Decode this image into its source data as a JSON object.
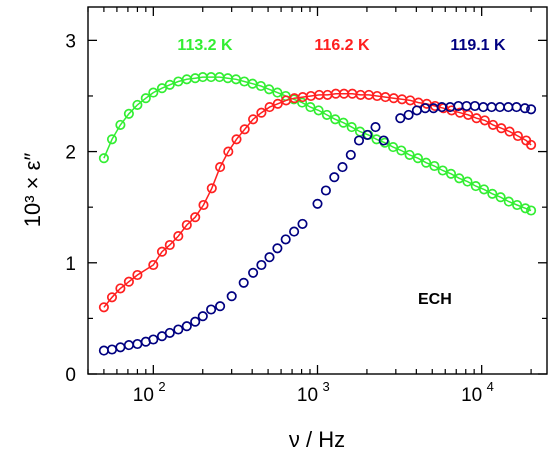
{
  "chart_data": {
    "type": "scatter",
    "xscale": "log",
    "xlim": [
      40,
      25000
    ],
    "ylim": [
      0,
      3.3
    ],
    "xlabel": "ν / Hz",
    "ylabel": "10³ × ε″",
    "x_ticks": [
      {
        "value": 100,
        "mantissa": "10",
        "exp": "2"
      },
      {
        "value": 1000,
        "mantissa": "10",
        "exp": "3"
      },
      {
        "value": 10000,
        "mantissa": "10",
        "exp": "4"
      }
    ],
    "y_ticks": [
      {
        "value": 0,
        "label": "0"
      },
      {
        "value": 1,
        "label": "1"
      },
      {
        "value": 2,
        "label": "2"
      },
      {
        "value": 3,
        "label": "3"
      }
    ],
    "annotation": "ECH",
    "grid": false,
    "series": [
      {
        "name": "113.2 K",
        "color": "#33ee33",
        "fit_line": true,
        "x": [
          50,
          56,
          63,
          71,
          80,
          90,
          100,
          113,
          126,
          142,
          160,
          180,
          200,
          225,
          253,
          284,
          319,
          358,
          402,
          452,
          507,
          570,
          640,
          718,
          806,
          905,
          1016,
          1141,
          1281,
          1439,
          1616,
          1815,
          2038,
          2289,
          2570,
          2886,
          3241,
          3640,
          4087,
          4590,
          5154,
          5788,
          6500,
          7299,
          8197,
          9205,
          10337,
          11608,
          13035,
          14638,
          16438,
          18460,
          20000
        ],
        "y": [
          1.94,
          2.11,
          2.24,
          2.34,
          2.42,
          2.48,
          2.53,
          2.57,
          2.6,
          2.63,
          2.65,
          2.66,
          2.67,
          2.67,
          2.67,
          2.66,
          2.65,
          2.63,
          2.61,
          2.59,
          2.56,
          2.53,
          2.5,
          2.47,
          2.44,
          2.4,
          2.37,
          2.33,
          2.29,
          2.26,
          2.22,
          2.18,
          2.15,
          2.11,
          2.08,
          2.04,
          2.01,
          1.97,
          1.94,
          1.9,
          1.87,
          1.83,
          1.8,
          1.76,
          1.73,
          1.69,
          1.66,
          1.62,
          1.59,
          1.55,
          1.52,
          1.49,
          1.47
        ]
      },
      {
        "name": "116.2 K",
        "color": "#ff2020",
        "fit_line": true,
        "x": [
          50,
          56,
          63,
          71,
          80,
          100,
          113,
          126,
          142,
          160,
          180,
          202,
          227,
          255,
          286,
          321,
          360,
          405,
          455,
          511,
          573,
          644,
          723,
          812,
          912,
          1024,
          1150,
          1292,
          1451,
          1629,
          1830,
          2055,
          2308,
          2592,
          2911,
          3270,
          3672,
          4124,
          4632,
          5202,
          5843,
          6562,
          7370,
          8278,
          9297,
          10442,
          11728,
          13172,
          14794,
          16616,
          18662,
          20000
        ],
        "y": [
          0.6,
          0.69,
          0.77,
          0.83,
          0.89,
          0.98,
          1.1,
          1.16,
          1.24,
          1.34,
          1.41,
          1.52,
          1.67,
          1.86,
          2.0,
          2.11,
          2.2,
          2.29,
          2.35,
          2.4,
          2.43,
          2.46,
          2.48,
          2.49,
          2.5,
          2.51,
          2.51,
          2.52,
          2.52,
          2.52,
          2.51,
          2.51,
          2.5,
          2.49,
          2.48,
          2.47,
          2.46,
          2.44,
          2.43,
          2.41,
          2.39,
          2.37,
          2.35,
          2.33,
          2.3,
          2.28,
          2.24,
          2.21,
          2.18,
          2.14,
          2.1,
          2.06
        ]
      },
      {
        "name": "119.1 K",
        "color": "#000080",
        "fit_line": false,
        "x": [
          50,
          56,
          63,
          71,
          80,
          90,
          100,
          113,
          126,
          142,
          160,
          180,
          200,
          225,
          255,
          300,
          355,
          405,
          455,
          510,
          570,
          640,
          720,
          810,
          1000,
          1125,
          1265,
          1420,
          1595,
          1790,
          2010,
          2255,
          2530,
          3195,
          3590,
          4030,
          4530,
          5090,
          5720,
          6425,
          7220,
          8100,
          9100,
          10230,
          11500,
          12920,
          14520,
          16310,
          18330,
          20000
        ],
        "y": [
          0.21,
          0.22,
          0.24,
          0.26,
          0.27,
          0.29,
          0.31,
          0.34,
          0.37,
          0.4,
          0.43,
          0.47,
          0.52,
          0.58,
          0.61,
          0.7,
          0.82,
          0.91,
          0.98,
          1.05,
          1.13,
          1.21,
          1.28,
          1.35,
          1.53,
          1.65,
          1.77,
          1.86,
          1.97,
          2.1,
          2.15,
          2.22,
          2.1,
          2.3,
          2.33,
          2.37,
          2.39,
          2.39,
          2.4,
          2.4,
          2.41,
          2.41,
          2.41,
          2.4,
          2.4,
          2.4,
          2.4,
          2.4,
          2.39,
          2.38
        ]
      }
    ]
  }
}
